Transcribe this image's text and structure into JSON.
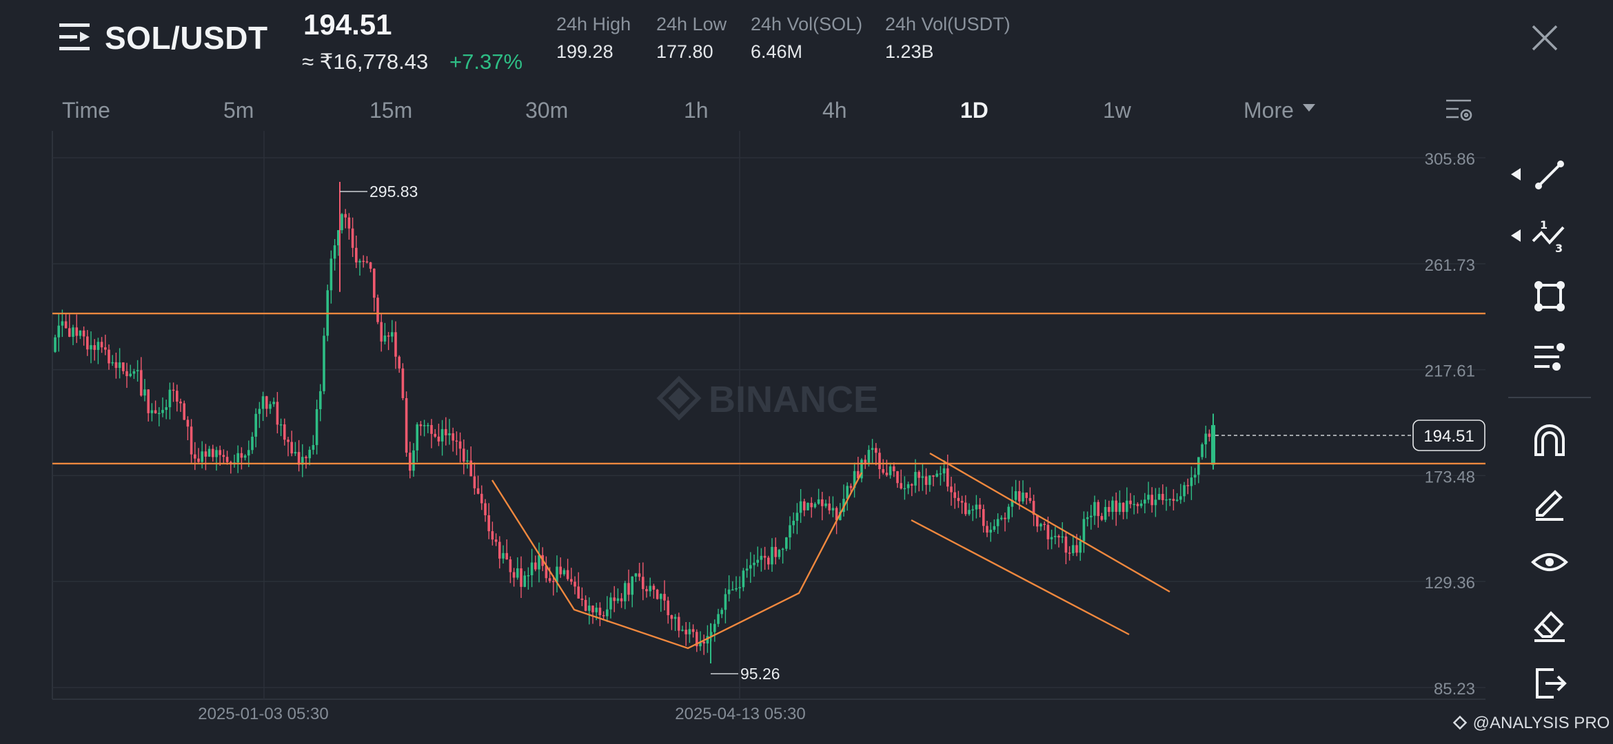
{
  "header": {
    "pair": "SOL/USDT",
    "last_price": "194.51",
    "price_inr": "≈ ₹16,778.43",
    "change_pct": "+7.37%",
    "stats": [
      {
        "label": "24h High",
        "value": "199.28"
      },
      {
        "label": "24h Low",
        "value": "177.80"
      },
      {
        "label": "24h Vol(SOL)",
        "value": "6.46M"
      },
      {
        "label": "24h Vol(USDT)",
        "value": "1.23B"
      }
    ]
  },
  "tabs": [
    "Time",
    "5m",
    "15m",
    "30m",
    "1h",
    "4h",
    "1D",
    "1w",
    "More"
  ],
  "active_tab": "1D",
  "chart": {
    "watermark": "BINANCE",
    "price_axis": [
      "305.86",
      "261.73",
      "217.61",
      "173.48",
      "129.36",
      "85.23"
    ],
    "dates": [
      "2025-01-03 05:30",
      "2025-04-13 05:30"
    ],
    "high_label": "295.83",
    "low_label": "95.26",
    "current_price_tag": "194.51",
    "horizontal_levels": [
      241.0,
      178.5
    ],
    "colors": {
      "up": "#2ebd85",
      "down": "#f0596e",
      "drawing": "#f0883e",
      "background": "#1f232b"
    }
  },
  "chart_data": {
    "type": "candlestick",
    "title": "",
    "ylim": [
      85.23,
      305.86
    ],
    "ticks_y": [
      305.86,
      261.73,
      217.61,
      173.48,
      129.36,
      85.23
    ],
    "grid": true,
    "annotations": [
      {
        "type": "high",
        "value": 295.83
      },
      {
        "type": "low",
        "value": 95.26
      },
      {
        "type": "horizontal_line",
        "value": 241.0
      },
      {
        "type": "horizontal_line",
        "value": 178.5
      }
    ]
  },
  "toolbar": {
    "icons": [
      "trend-line-icon",
      "fibonacci-icon",
      "shape-icon",
      "indicator-lines-icon",
      "magnet-icon",
      "pencil-icon",
      "eye-icon",
      "eraser-icon",
      "exit-icon"
    ]
  },
  "footer": {
    "brand": "@ANALYSIS PRO"
  }
}
